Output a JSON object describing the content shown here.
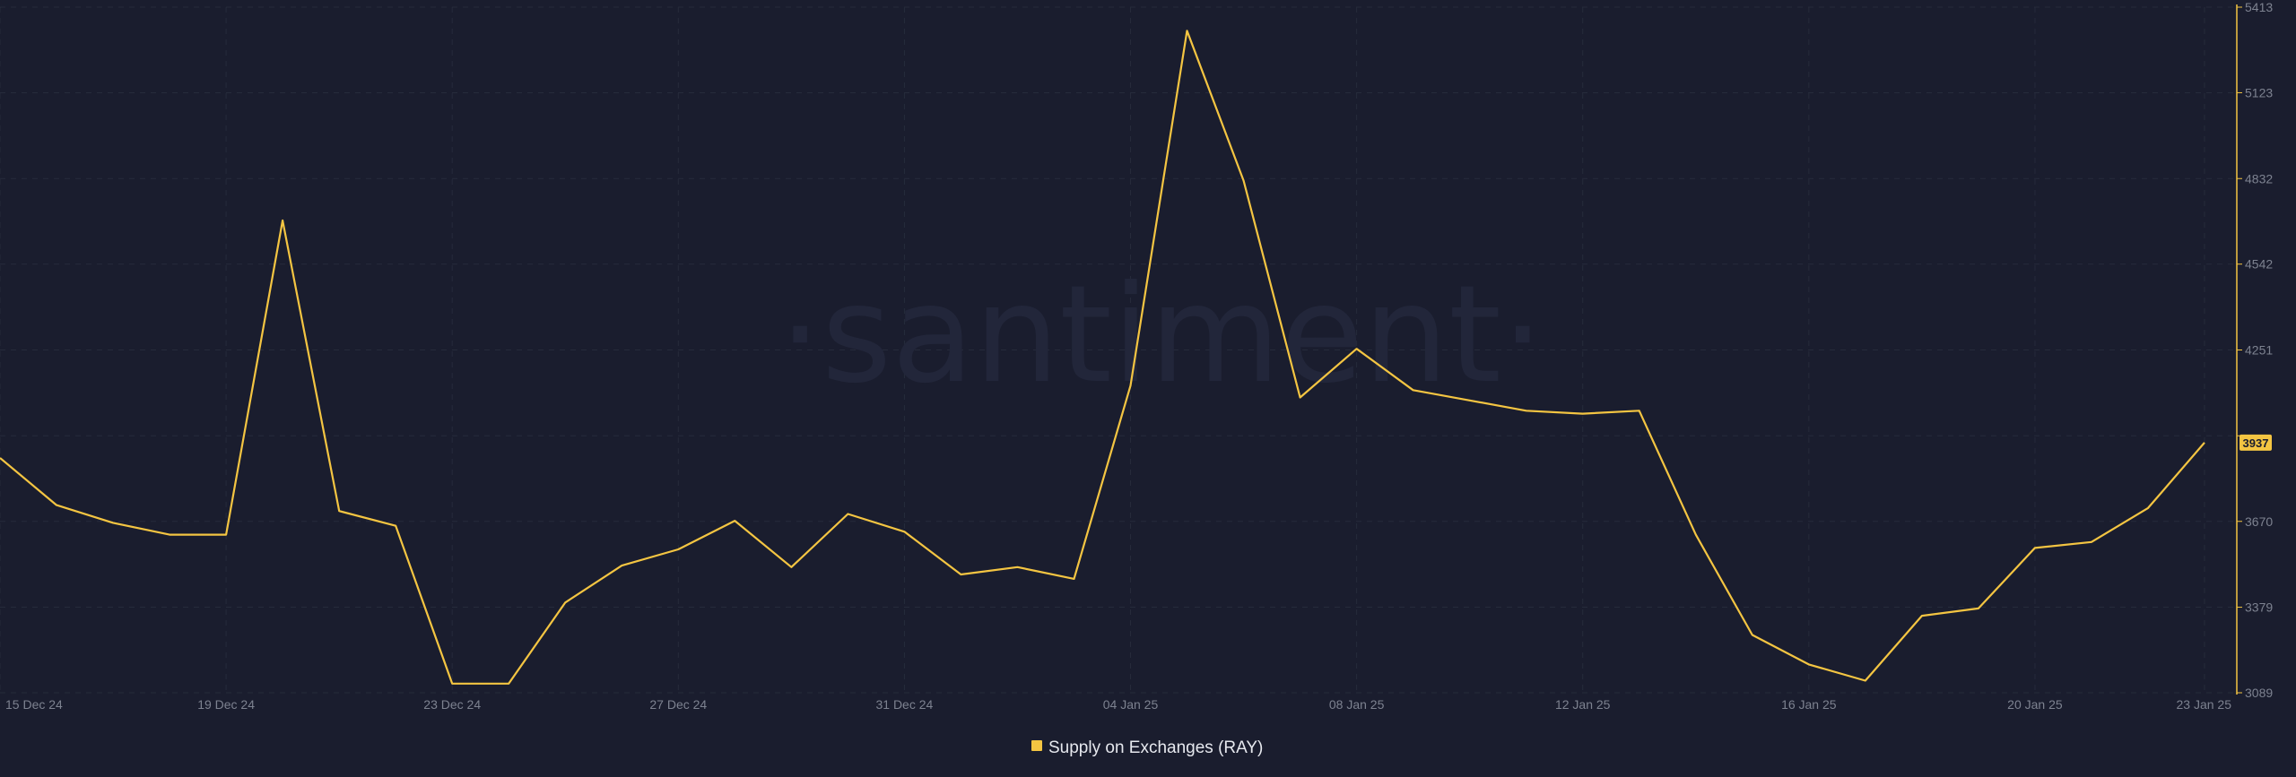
{
  "watermark": "·santiment·",
  "colors": {
    "background": "#1a1d2e",
    "series": "#f4c542",
    "axis_text": "#7d8290",
    "grid": "#262b3b"
  },
  "chart_data": {
    "type": "line",
    "title": "",
    "xlabel": "",
    "ylabel": "",
    "y_axis_position": "right",
    "ylim": [
      3089,
      5413
    ],
    "y_ticks": [
      3089,
      3379,
      3670,
      3960,
      4251,
      4542,
      4832,
      5123,
      5413
    ],
    "y_tick_labels": [
      "3089",
      "3379",
      "3670",
      "",
      "4251",
      "4542",
      "4832",
      "5123",
      "5413"
    ],
    "x_tick_labels": [
      "15 Dec 24",
      "19 Dec 24",
      "23 Dec 24",
      "27 Dec 24",
      "31 Dec 24",
      "04 Jan 25",
      "08 Jan 25",
      "12 Jan 25",
      "16 Jan 25",
      "20 Jan 25",
      "23 Jan 25"
    ],
    "x_tick_index": [
      0,
      4,
      8,
      12,
      16,
      20,
      24,
      28,
      32,
      36,
      39
    ],
    "grid": true,
    "legend_position": "bottom-center",
    "last_value_label": "3937",
    "series": [
      {
        "name": "Supply on Exchanges (RAY)",
        "values": [
          3885,
          3725,
          3665,
          3625,
          3625,
          4690,
          3705,
          3655,
          3120,
          3120,
          3395,
          3520,
          3575,
          3672,
          3515,
          3695,
          3635,
          3490,
          3515,
          3475,
          4130,
          5333,
          4825,
          4090,
          4255,
          4115,
          4080,
          4045,
          4035,
          4045,
          3625,
          3285,
          3185,
          3130,
          3350,
          3375,
          3580,
          3600,
          3715,
          3937
        ]
      }
    ]
  }
}
